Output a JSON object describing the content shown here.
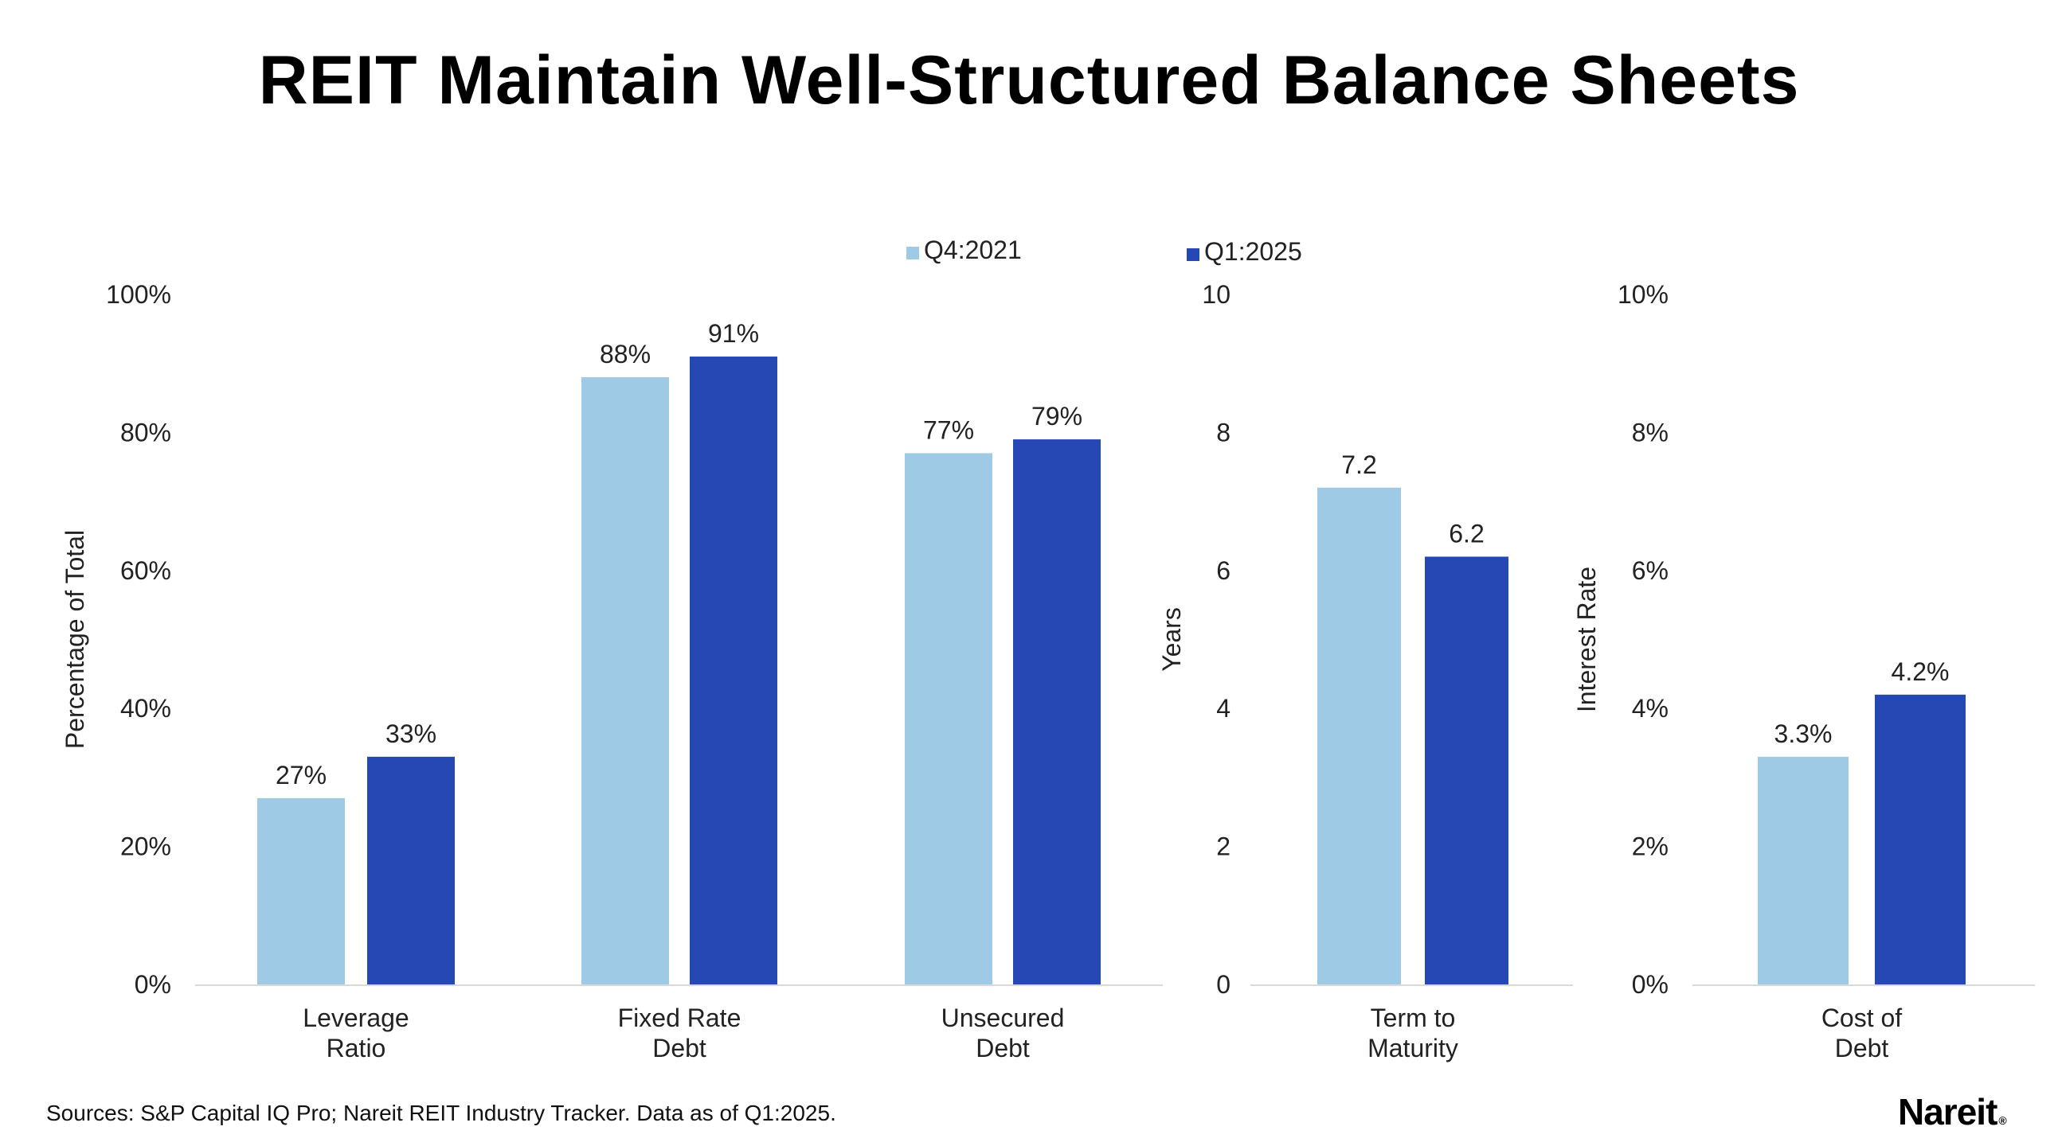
{
  "title": "REIT Maintain Well-Structured Balance Sheets",
  "source": "Sources: S&P Capital IQ Pro; Nareit REIT Industry Tracker. Data as of Q1:2025.",
  "logo": {
    "text": "Nareit",
    "mark": "®"
  },
  "legend": [
    {
      "name": "Q4:2021",
      "color": "#9ecae6"
    },
    {
      "name": "Q1:2025",
      "color": "#2548b5"
    }
  ],
  "chart_data": [
    {
      "type": "bar",
      "ylabel": "Percentage of Total",
      "ylim": [
        0,
        100
      ],
      "yticks": [
        "0%",
        "20%",
        "40%",
        "60%",
        "80%",
        "100%"
      ],
      "categories": [
        [
          "Leverage",
          "Ratio"
        ],
        [
          "Fixed Rate",
          "Debt"
        ],
        [
          "Unsecured",
          "Debt"
        ]
      ],
      "series": [
        {
          "name": "Q4:2021",
          "values": [
            27,
            88,
            77
          ],
          "labels": [
            "27%",
            "88%",
            "77%"
          ]
        },
        {
          "name": "Q1:2025",
          "values": [
            33,
            91,
            79
          ],
          "labels": [
            "33%",
            "91%",
            "79%"
          ]
        }
      ]
    },
    {
      "type": "bar",
      "ylabel": "Years",
      "ylim": [
        0,
        10
      ],
      "yticks": [
        "0",
        "2",
        "4",
        "6",
        "8",
        "10"
      ],
      "categories": [
        [
          "Term to",
          "Maturity"
        ]
      ],
      "series": [
        {
          "name": "Q4:2021",
          "values": [
            7.2
          ],
          "labels": [
            "7.2"
          ]
        },
        {
          "name": "Q1:2025",
          "values": [
            6.2
          ],
          "labels": [
            "6.2"
          ]
        }
      ]
    },
    {
      "type": "bar",
      "ylabel": "Interest Rate",
      "ylim": [
        0,
        10
      ],
      "yticks": [
        "0%",
        "2%",
        "4%",
        "6%",
        "8%",
        "10%"
      ],
      "categories": [
        [
          "Cost of",
          "Debt"
        ]
      ],
      "series": [
        {
          "name": "Q4:2021",
          "values": [
            3.3
          ],
          "labels": [
            "3.3%"
          ]
        },
        {
          "name": "Q1:2025",
          "values": [
            4.2
          ],
          "labels": [
            "4.2%"
          ]
        }
      ]
    }
  ]
}
